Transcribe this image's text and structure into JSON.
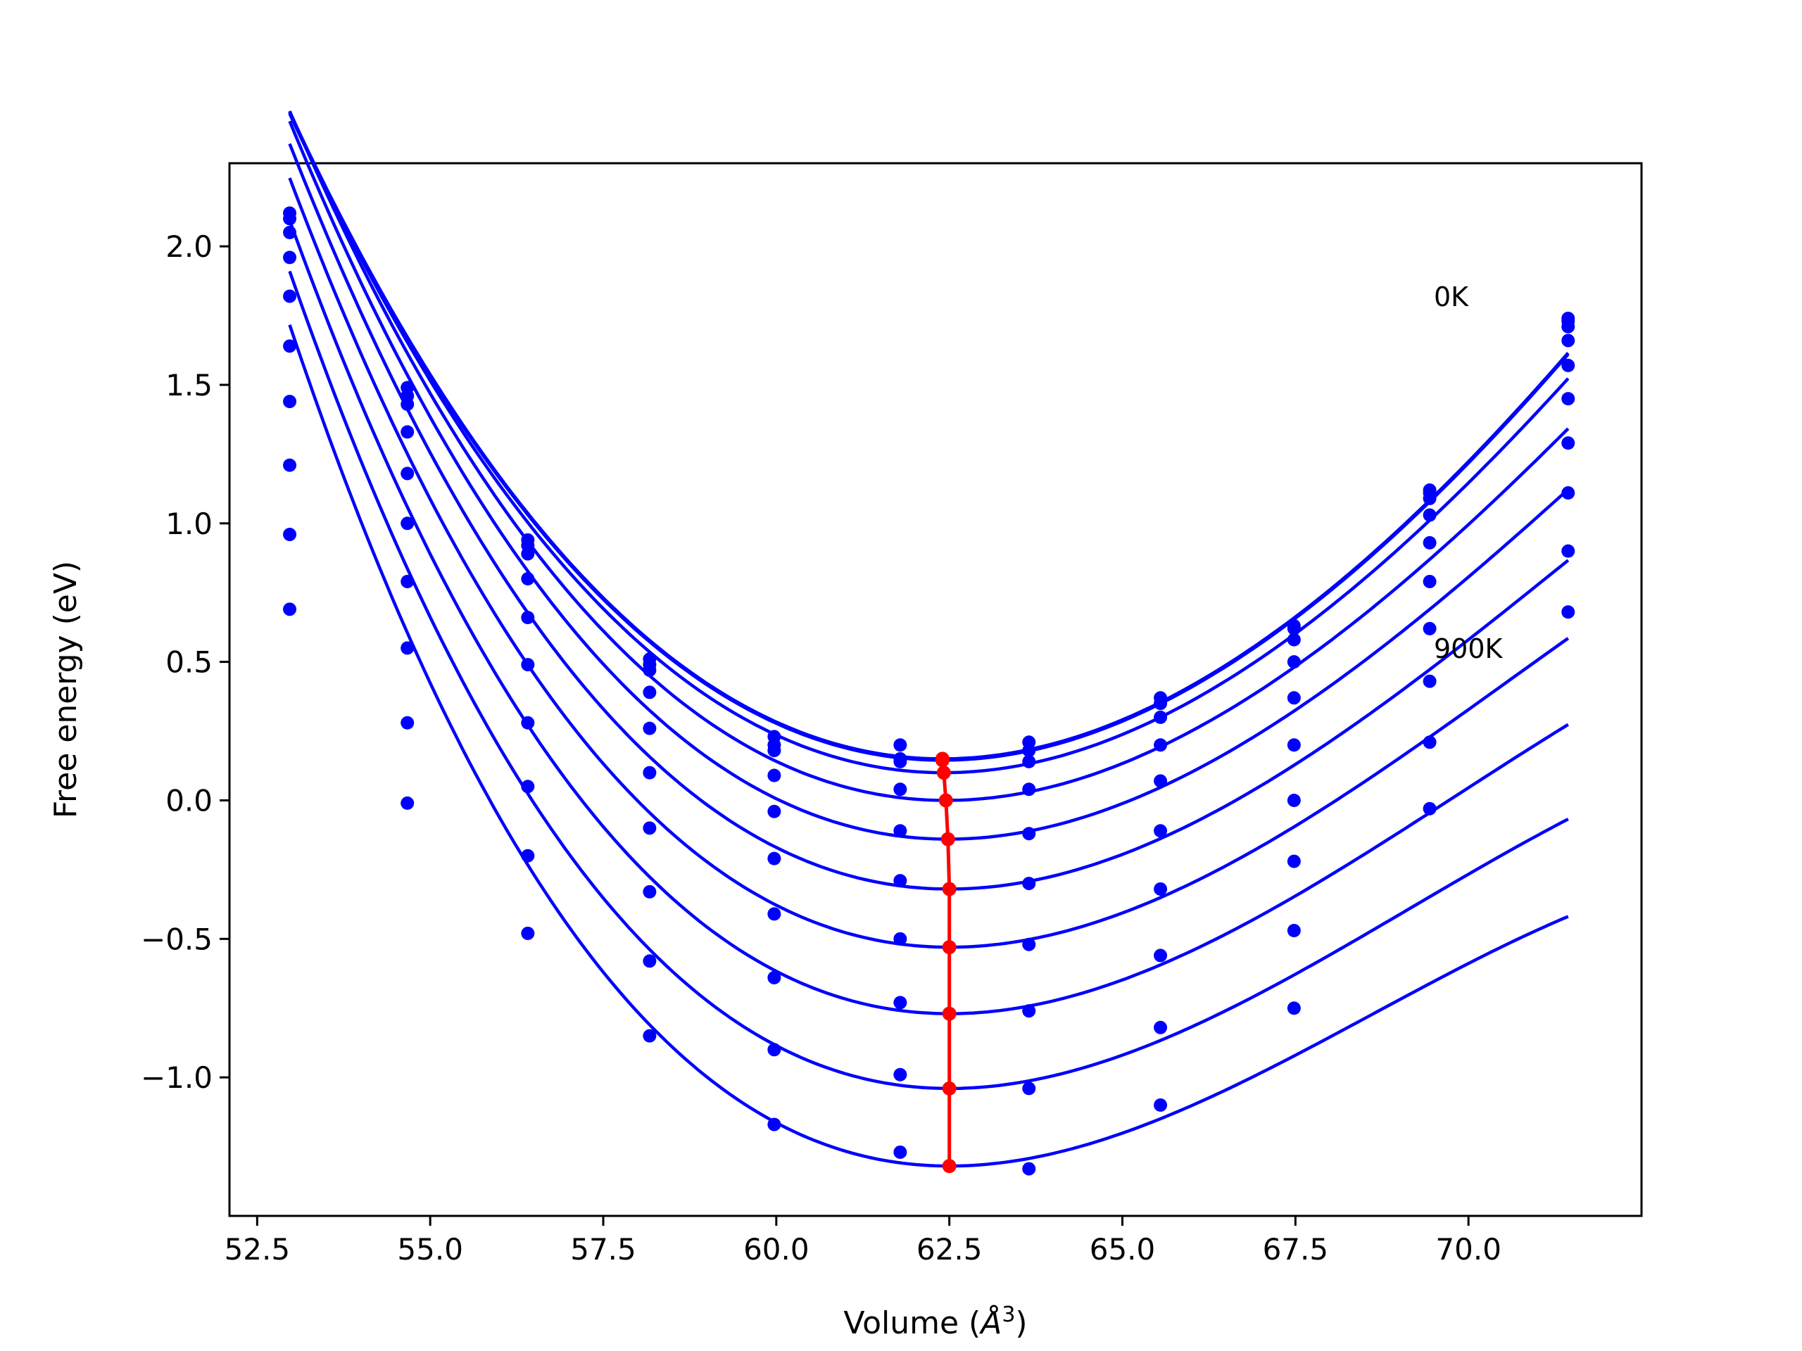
{
  "chart_data": {
    "type": "line",
    "title": "",
    "xlabel": "Volume (",
    "xlabel_symbol": "Å",
    "xlabel_exp": "3",
    "xlabel_close": ")",
    "ylabel": "Free energy (eV)",
    "xlim": [
      52.1,
      72.5
    ],
    "ylim": [
      -1.5,
      2.3
    ],
    "xticks": [
      52.5,
      55.0,
      57.5,
      60.0,
      62.5,
      65.0,
      67.5,
      70.0
    ],
    "xtick_labels": [
      "52.5",
      "55.0",
      "57.5",
      "60.0",
      "62.5",
      "65.0",
      "67.5",
      "70.0"
    ],
    "yticks": [
      2.0,
      1.5,
      1.0,
      0.5,
      0.0,
      -0.5,
      -1.0
    ],
    "ytick_labels": [
      "2.0",
      "1.5",
      "1.0",
      "0.5",
      "0.0",
      "−0.5",
      "−1.0"
    ],
    "grid": false,
    "legend": "none",
    "colors": {
      "fit": "#0000ff",
      "points": "#0000ff",
      "minima": "#ff0000"
    },
    "volumes": [
      52.97,
      54.67,
      56.41,
      58.17,
      59.97,
      61.79,
      63.65,
      65.55,
      67.48,
      69.44,
      71.44
    ],
    "series": [
      {
        "label": "0K",
        "fit": {
          "vmin": 62.4,
          "emin": 0.15,
          "a": 0.022,
          "b": 0.00045
        },
        "points": [
          2.12,
          1.49,
          0.94,
          0.51,
          0.23,
          0.2,
          0.21,
          0.37,
          0.63,
          1.12,
          1.74
        ]
      },
      {
        "fit": {
          "vmin": 62.4,
          "emin": 0.145,
          "a": 0.022,
          "b": 0.00045
        },
        "points": [
          2.1,
          1.46,
          0.92,
          0.49,
          0.2,
          0.14,
          0.18,
          0.35,
          0.62,
          1.11,
          1.73
        ]
      },
      {
        "fit": {
          "vmin": 62.42,
          "emin": 0.1,
          "a": 0.022,
          "b": 0.0005
        },
        "points": [
          2.05,
          1.43,
          0.89,
          0.47,
          0.18,
          0.15,
          0.14,
          0.3,
          0.58,
          1.09,
          1.71
        ]
      },
      {
        "fit": {
          "vmin": 62.45,
          "emin": 0.0,
          "a": 0.022,
          "b": 0.0006
        },
        "points": [
          1.96,
          1.33,
          0.8,
          0.39,
          0.09,
          0.04,
          0.04,
          0.2,
          0.5,
          1.03,
          1.66
        ]
      },
      {
        "fit": {
          "vmin": 62.48,
          "emin": -0.14,
          "a": 0.022,
          "b": 0.0007
        },
        "points": [
          1.82,
          1.18,
          0.66,
          0.26,
          -0.04,
          -0.11,
          -0.12,
          0.07,
          0.37,
          0.93,
          1.57
        ]
      },
      {
        "fit": {
          "vmin": 62.5,
          "emin": -0.32,
          "a": 0.022,
          "b": 0.0008
        },
        "points": [
          1.64,
          1.0,
          0.49,
          0.1,
          -0.21,
          -0.29,
          -0.3,
          -0.11,
          0.2,
          0.79,
          1.45
        ]
      },
      {
        "fit": {
          "vmin": 62.5,
          "emin": -0.53,
          "a": 0.022,
          "b": 0.0009
        },
        "points": [
          1.44,
          0.79,
          0.28,
          -0.1,
          -0.41,
          -0.5,
          -0.52,
          -0.32,
          0.0,
          0.62,
          1.29
        ]
      },
      {
        "fit": {
          "vmin": 62.5,
          "emin": -0.77,
          "a": 0.022,
          "b": 0.001
        },
        "points": [
          1.21,
          0.55,
          0.05,
          -0.33,
          -0.64,
          -0.73,
          -0.76,
          -0.56,
          -0.22,
          0.43,
          1.11
        ]
      },
      {
        "fit": {
          "vmin": 62.5,
          "emin": -1.04,
          "a": 0.022,
          "b": 0.0011
        },
        "points": [
          0.96,
          0.28,
          -0.2,
          -0.58,
          -0.9,
          -0.99,
          -1.04,
          -0.82,
          -0.47,
          0.21,
          0.9
        ]
      },
      {
        "label": "900K",
        "fit": {
          "vmin": 62.5,
          "emin": -1.32,
          "a": 0.022,
          "b": 0.0012
        },
        "points": [
          0.69,
          -0.01,
          -0.48,
          -0.85,
          -1.17,
          -1.27,
          -1.33,
          -1.1,
          -0.75,
          -0.03,
          0.68
        ]
      }
    ],
    "minima_curve": {
      "volume": [
        62.4,
        62.4,
        62.42,
        62.45,
        62.48,
        62.5,
        62.5,
        62.5,
        62.5,
        62.5
      ],
      "energy": [
        0.15,
        0.145,
        0.1,
        0.0,
        -0.14,
        -0.32,
        -0.53,
        -0.77,
        -1.04,
        -1.32
      ]
    },
    "annotations": [
      {
        "text": "0K",
        "x": 69.5,
        "y": 1.82
      },
      {
        "text": "900K",
        "x": 69.5,
        "y": 0.55
      }
    ]
  }
}
